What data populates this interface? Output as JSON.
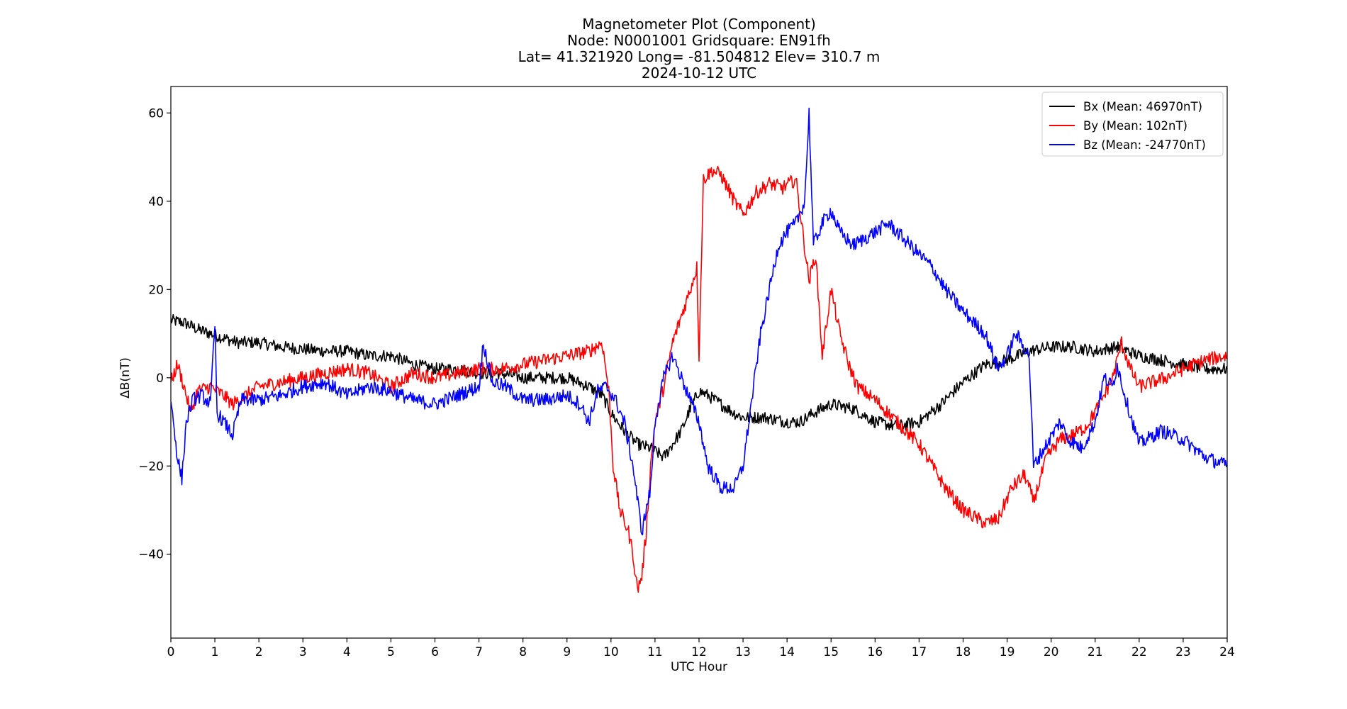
{
  "chart_data": {
    "type": "line",
    "title": "Magnetometer Plot (Component)",
    "subtitle_lines": [
      "Node:  N0001001     Gridsquare:  EN91fh",
      "Lat= 41.321920    Long= -81.504812    Elev= 310.7 m",
      "2024-10-12  UTC"
    ],
    "xlabel": "UTC Hour",
    "ylabel": "ΔB(nT)",
    "xlim": [
      0,
      24
    ],
    "ylim": [
      -59,
      66
    ],
    "xticks": [
      0,
      1,
      2,
      3,
      4,
      5,
      6,
      7,
      8,
      9,
      10,
      11,
      12,
      13,
      14,
      15,
      16,
      17,
      18,
      19,
      20,
      21,
      22,
      23,
      24
    ],
    "yticks": [
      -40,
      -20,
      0,
      20,
      40,
      60
    ],
    "grid": false,
    "legend_position": "top-right",
    "series": [
      {
        "name": "Bx (Mean: 46970nT)",
        "color": "#000000",
        "points": [
          [
            0,
            13
          ],
          [
            0.3,
            12.5
          ],
          [
            0.6,
            11
          ],
          [
            0.9,
            10
          ],
          [
            1.2,
            9
          ],
          [
            1.5,
            8
          ],
          [
            2,
            8
          ],
          [
            2.5,
            7
          ],
          [
            3,
            6.5
          ],
          [
            3.5,
            6
          ],
          [
            4,
            6
          ],
          [
            4.5,
            5
          ],
          [
            5,
            5
          ],
          [
            5.5,
            3
          ],
          [
            6,
            2
          ],
          [
            6.5,
            2
          ],
          [
            7,
            1
          ],
          [
            7.5,
            1
          ],
          [
            8,
            0
          ],
          [
            8.5,
            0
          ],
          [
            9,
            0
          ],
          [
            9.5,
            -2
          ],
          [
            9.8,
            -4
          ],
          [
            10,
            -8
          ],
          [
            10.3,
            -12
          ],
          [
            10.6,
            -15
          ],
          [
            10.9,
            -16
          ],
          [
            11.2,
            -18
          ],
          [
            11.4,
            -15
          ],
          [
            11.6,
            -12
          ],
          [
            11.8,
            -7
          ],
          [
            12,
            -3
          ],
          [
            12.2,
            -4
          ],
          [
            12.5,
            -6
          ],
          [
            12.8,
            -8
          ],
          [
            13,
            -9
          ],
          [
            13.5,
            -9
          ],
          [
            14,
            -10
          ],
          [
            14.3,
            -10
          ],
          [
            14.6,
            -8
          ],
          [
            15,
            -6
          ],
          [
            15.5,
            -7
          ],
          [
            16,
            -10
          ],
          [
            16.5,
            -11
          ],
          [
            17,
            -10
          ],
          [
            17.5,
            -6
          ],
          [
            18,
            -1
          ],
          [
            18.5,
            3
          ],
          [
            19,
            4
          ],
          [
            19.5,
            6
          ],
          [
            20,
            7
          ],
          [
            20.5,
            7
          ],
          [
            21,
            6
          ],
          [
            21.5,
            7
          ],
          [
            22,
            5
          ],
          [
            22.5,
            4
          ],
          [
            23,
            3
          ],
          [
            23.5,
            2
          ],
          [
            24,
            2
          ]
        ]
      },
      {
        "name": "By (Mean: 102nT)",
        "color": "#ff0000",
        "points": [
          [
            0,
            -1
          ],
          [
            0.15,
            3
          ],
          [
            0.3,
            -2
          ],
          [
            0.45,
            -8
          ],
          [
            0.6,
            -3
          ],
          [
            0.9,
            -2
          ],
          [
            1.2,
            -4
          ],
          [
            1.4,
            -6
          ],
          [
            1.7,
            -4
          ],
          [
            2,
            -2
          ],
          [
            2.5,
            -1
          ],
          [
            3,
            0
          ],
          [
            3.5,
            1
          ],
          [
            4,
            2
          ],
          [
            4.5,
            1
          ],
          [
            5,
            -2
          ],
          [
            5.5,
            1
          ],
          [
            6,
            0
          ],
          [
            6.5,
            1
          ],
          [
            7,
            2
          ],
          [
            7.5,
            2
          ],
          [
            8,
            3
          ],
          [
            8.5,
            4
          ],
          [
            9,
            5
          ],
          [
            9.5,
            6
          ],
          [
            9.8,
            8
          ],
          [
            9.95,
            -3
          ],
          [
            10.05,
            -20
          ],
          [
            10.2,
            -30
          ],
          [
            10.4,
            -35
          ],
          [
            10.5,
            -40
          ],
          [
            10.6,
            -48
          ],
          [
            10.7,
            -45
          ],
          [
            10.8,
            -35
          ],
          [
            10.9,
            -20
          ],
          [
            11,
            -10
          ],
          [
            11.2,
            -2
          ],
          [
            11.4,
            8
          ],
          [
            11.6,
            14
          ],
          [
            11.8,
            20
          ],
          [
            11.95,
            25
          ],
          [
            12,
            5
          ],
          [
            12.1,
            45
          ],
          [
            12.3,
            47
          ],
          [
            12.5,
            46
          ],
          [
            12.8,
            40
          ],
          [
            13,
            37
          ],
          [
            13.3,
            42
          ],
          [
            13.6,
            44
          ],
          [
            13.9,
            43
          ],
          [
            14.2,
            45
          ],
          [
            14.5,
            22
          ],
          [
            14.65,
            28
          ],
          [
            14.8,
            5
          ],
          [
            15,
            20
          ],
          [
            15.2,
            10
          ],
          [
            15.4,
            3
          ],
          [
            15.6,
            -2
          ],
          [
            16,
            -5
          ],
          [
            16.5,
            -10
          ],
          [
            17,
            -15
          ],
          [
            17.3,
            -20
          ],
          [
            17.6,
            -25
          ],
          [
            18,
            -30
          ],
          [
            18.5,
            -33
          ],
          [
            18.8,
            -32
          ],
          [
            19.1,
            -25
          ],
          [
            19.4,
            -22
          ],
          [
            19.6,
            -28
          ],
          [
            19.9,
            -18
          ],
          [
            20.2,
            -14
          ],
          [
            20.5,
            -13
          ],
          [
            20.8,
            -11
          ],
          [
            21.1,
            -6
          ],
          [
            21.4,
            0
          ],
          [
            21.6,
            8
          ],
          [
            21.8,
            2
          ],
          [
            22,
            -2
          ],
          [
            22.3,
            -1
          ],
          [
            22.6,
            0
          ],
          [
            23,
            2
          ],
          [
            23.5,
            4
          ],
          [
            24,
            5
          ]
        ]
      },
      {
        "name": "Bz (Mean: -24770nT)",
        "color": "#0000ff",
        "points": [
          [
            0,
            -5
          ],
          [
            0.15,
            -18
          ],
          [
            0.25,
            -23
          ],
          [
            0.35,
            -10
          ],
          [
            0.5,
            -5
          ],
          [
            0.7,
            -4
          ],
          [
            0.9,
            -6
          ],
          [
            1,
            12
          ],
          [
            1.05,
            -8
          ],
          [
            1.2,
            -10
          ],
          [
            1.4,
            -13
          ],
          [
            1.6,
            -5
          ],
          [
            2,
            -5
          ],
          [
            2.5,
            -4
          ],
          [
            3,
            -2
          ],
          [
            3.5,
            -1
          ],
          [
            4,
            -4
          ],
          [
            4.5,
            -2
          ],
          [
            5,
            -3
          ],
          [
            5.5,
            -5
          ],
          [
            6,
            -6
          ],
          [
            6.5,
            -4
          ],
          [
            7,
            -2
          ],
          [
            7.1,
            8
          ],
          [
            7.3,
            -1
          ],
          [
            7.6,
            -2
          ],
          [
            8,
            -5
          ],
          [
            8.5,
            -5
          ],
          [
            9,
            -4
          ],
          [
            9.3,
            -6
          ],
          [
            9.5,
            -10
          ],
          [
            9.7,
            -3
          ],
          [
            9.9,
            -2
          ],
          [
            10.1,
            -5
          ],
          [
            10.3,
            -10
          ],
          [
            10.5,
            -20
          ],
          [
            10.7,
            -35
          ],
          [
            10.9,
            -25
          ],
          [
            11,
            -10
          ],
          [
            11.2,
            0
          ],
          [
            11.4,
            5
          ],
          [
            11.6,
            0
          ],
          [
            11.8,
            -5
          ],
          [
            12,
            -10
          ],
          [
            12.2,
            -20
          ],
          [
            12.5,
            -25
          ],
          [
            12.8,
            -25
          ],
          [
            13,
            -20
          ],
          [
            13.2,
            -5
          ],
          [
            13.4,
            10
          ],
          [
            13.6,
            20
          ],
          [
            13.8,
            30
          ],
          [
            14,
            33
          ],
          [
            14.2,
            35
          ],
          [
            14.4,
            40
          ],
          [
            14.5,
            60
          ],
          [
            14.6,
            30
          ],
          [
            14.8,
            35
          ],
          [
            15,
            38
          ],
          [
            15.2,
            33
          ],
          [
            15.5,
            30
          ],
          [
            16,
            33
          ],
          [
            16.3,
            35
          ],
          [
            16.6,
            32
          ],
          [
            17,
            28
          ],
          [
            17.3,
            25
          ],
          [
            17.6,
            20
          ],
          [
            18,
            15
          ],
          [
            18.5,
            10
          ],
          [
            18.8,
            2
          ],
          [
            19,
            5
          ],
          [
            19.2,
            10
          ],
          [
            19.5,
            5
          ],
          [
            19.6,
            -20
          ],
          [
            19.9,
            -15
          ],
          [
            20.2,
            -10
          ],
          [
            20.4,
            -14
          ],
          [
            20.7,
            -16
          ],
          [
            21,
            -10
          ],
          [
            21.2,
            0
          ],
          [
            21.4,
            -2
          ],
          [
            21.5,
            3
          ],
          [
            21.7,
            -5
          ],
          [
            22,
            -15
          ],
          [
            22.5,
            -12
          ],
          [
            23,
            -14
          ],
          [
            23.5,
            -18
          ],
          [
            24,
            -20
          ]
        ]
      }
    ]
  }
}
